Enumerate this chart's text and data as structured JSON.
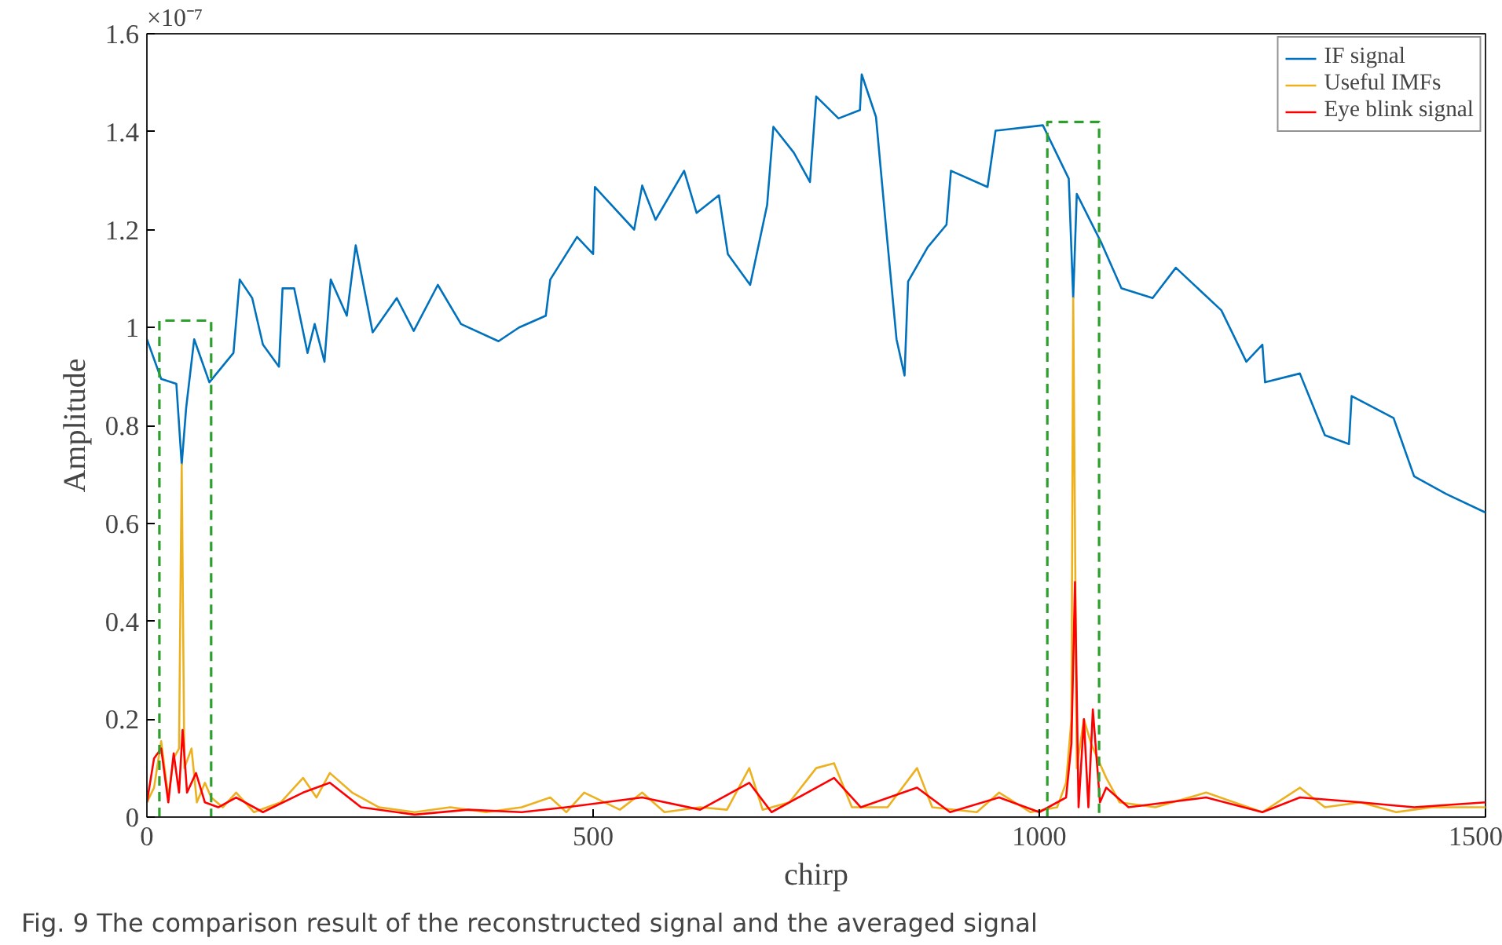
{
  "chart_data": {
    "type": "line",
    "xlabel": "chirp",
    "ylabel": "Amplitude",
    "xlim": [
      0,
      1500
    ],
    "xticks": [
      0,
      500,
      1000,
      1500
    ],
    "ylim": [
      0,
      1.6
    ],
    "yticks": [
      0,
      0.2,
      0.4,
      0.6,
      0.8,
      1,
      1.2,
      1.4,
      1.6
    ],
    "grid": false,
    "legend": "top right",
    "line_style": "solid",
    "annotations": [
      "×10⁻⁷",
      "Fig. 9  The comparison result of the reconstructed signal and the averaged signal"
    ],
    "series": [
      {
        "name": "IF signal",
        "color": "#0072bd",
        "x": [
          0,
          16,
          33,
          39,
          44,
          53,
          70,
          97,
          104,
          118,
          130,
          148,
          152,
          165,
          180,
          188,
          199,
          206,
          224,
          234,
          253,
          280,
          299,
          326,
          352,
          394,
          417,
          447,
          452,
          482,
          500,
          502,
          546,
          555,
          570,
          602,
          616,
          641,
          651,
          676,
          695,
          702,
          725,
          743,
          750,
          775,
          799,
          801,
          817,
          828,
          840,
          849,
          853,
          875,
          896,
          901,
          942,
          951,
          1004,
          1033,
          1038,
          1042,
          1069,
          1092,
          1127,
          1153,
          1204,
          1232,
          1250,
          1253,
          1292,
          1320,
          1347,
          1350,
          1397,
          1420,
          1456,
          1500
        ],
        "values": [
          0.976,
          0.895,
          0.885,
          0.72,
          0.836,
          0.976,
          0.888,
          0.948,
          1.098,
          1.06,
          0.965,
          0.92,
          1.08,
          1.08,
          0.948,
          1.007,
          0.93,
          1.098,
          1.024,
          1.168,
          0.99,
          1.06,
          0.993,
          1.087,
          1.007,
          0.972,
          1.0,
          1.024,
          1.098,
          1.185,
          1.15,
          1.287,
          1.2,
          1.29,
          1.22,
          1.32,
          1.234,
          1.27,
          1.15,
          1.087,
          1.25,
          1.41,
          1.357,
          1.297,
          1.472,
          1.427,
          1.444,
          1.517,
          1.43,
          1.21,
          0.976,
          0.902,
          1.094,
          1.164,
          1.21,
          1.32,
          1.287,
          1.402,
          1.413,
          1.304,
          1.06,
          1.273,
          1.175,
          1.08,
          1.06,
          1.122,
          1.035,
          0.93,
          0.965,
          0.888,
          0.906,
          0.78,
          0.762,
          0.86,
          0.815,
          0.696,
          0.66,
          0.622
        ]
      },
      {
        "name": "Useful IMFs",
        "color": "#edb120",
        "x": [
          0,
          8,
          16,
          24,
          30,
          36,
          39,
          42,
          50,
          56,
          65,
          72,
          85,
          100,
          120,
          150,
          175,
          190,
          205,
          230,
          260,
          300,
          340,
          380,
          420,
          452,
          470,
          490,
          530,
          555,
          580,
          620,
          650,
          675,
          690,
          720,
          750,
          770,
          790,
          830,
          863,
          880,
          930,
          955,
          990,
          1020,
          1030,
          1036,
          1038,
          1042,
          1050,
          1058,
          1075,
          1090,
          1130,
          1187,
          1250,
          1292,
          1320,
          1360,
          1400,
          1440,
          1500
        ],
        "values": [
          0.03,
          0.06,
          0.155,
          0.04,
          0.12,
          0.14,
          0.72,
          0.1,
          0.14,
          0.03,
          0.07,
          0.04,
          0.02,
          0.05,
          0.01,
          0.03,
          0.08,
          0.04,
          0.09,
          0.05,
          0.02,
          0.01,
          0.02,
          0.01,
          0.02,
          0.04,
          0.01,
          0.05,
          0.015,
          0.05,
          0.01,
          0.02,
          0.015,
          0.1,
          0.015,
          0.03,
          0.1,
          0.11,
          0.02,
          0.02,
          0.1,
          0.02,
          0.01,
          0.05,
          0.01,
          0.02,
          0.07,
          0.2,
          1.06,
          0.1,
          0.2,
          0.15,
          0.08,
          0.03,
          0.02,
          0.05,
          0.01,
          0.06,
          0.02,
          0.03,
          0.01,
          0.02,
          0.02
        ]
      },
      {
        "name": "Eye blink signal",
        "color": "#ff0000",
        "x": [
          0,
          8,
          16,
          24,
          30,
          36,
          40,
          45,
          55,
          65,
          80,
          100,
          130,
          175,
          205,
          240,
          300,
          360,
          420,
          470,
          555,
          620,
          675,
          700,
          750,
          770,
          800,
          863,
          900,
          955,
          1000,
          1030,
          1036,
          1040,
          1044,
          1050,
          1055,
          1060,
          1068,
          1075,
          1100,
          1187,
          1250,
          1292,
          1360,
          1420,
          1500
        ],
        "values": [
          0.03,
          0.12,
          0.14,
          0.03,
          0.13,
          0.05,
          0.178,
          0.05,
          0.09,
          0.03,
          0.02,
          0.04,
          0.01,
          0.05,
          0.07,
          0.02,
          0.005,
          0.015,
          0.01,
          0.02,
          0.04,
          0.015,
          0.07,
          0.01,
          0.06,
          0.08,
          0.02,
          0.06,
          0.01,
          0.04,
          0.01,
          0.04,
          0.15,
          0.48,
          0.02,
          0.2,
          0.02,
          0.22,
          0.03,
          0.06,
          0.02,
          0.04,
          0.01,
          0.04,
          0.03,
          0.02,
          0.03
        ]
      },
      {
        "color": "#2ca02c",
        "line_style": "dashed",
        "x": [
          14,
          14,
          72,
          72
        ],
        "values": [
          0,
          1.014,
          1.014,
          0
        ]
      },
      {
        "color": "#2ca02c",
        "line_style": "dashed",
        "x": [
          1009,
          1009,
          1067,
          1067
        ],
        "values": [
          0,
          1.42,
          1.42,
          0
        ]
      }
    ]
  }
}
